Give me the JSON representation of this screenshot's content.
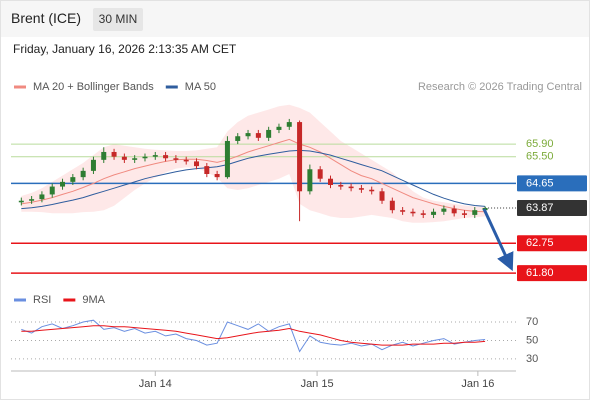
{
  "header": {
    "title": "Brent (ICE)",
    "interval": "30 MIN",
    "timestamp": "Friday, January 16, 2026 2:13:35 AM CET",
    "copyright": "Research © 2026 Trading Central"
  },
  "chart_data": [
    {
      "type": "candlestick",
      "up_color": "#2e7d32",
      "down_color": "#c62828",
      "band_color": "rgba(250,150,150,0.22)",
      "x": [
        0,
        1,
        2,
        3,
        4,
        5,
        6,
        7,
        8,
        9,
        10,
        11,
        12,
        13,
        14,
        15,
        16,
        17,
        18,
        19,
        20,
        21,
        22,
        23,
        24,
        25,
        26,
        27,
        28,
        29,
        30,
        31,
        32,
        33,
        34,
        35,
        36,
        37,
        38,
        39,
        40,
        41,
        42,
        43,
        44,
        45
      ],
      "xlim": [
        -1,
        48
      ],
      "ylim": [
        61.39,
        67.27
      ],
      "open": [
        64.05,
        64.1,
        64.15,
        64.3,
        64.55,
        64.7,
        64.85,
        65.05,
        65.4,
        65.65,
        65.5,
        65.4,
        65.45,
        65.5,
        65.55,
        65.45,
        65.4,
        65.35,
        65.2,
        64.95,
        64.85,
        66.0,
        66.15,
        66.25,
        66.1,
        66.35,
        66.45,
        66.6,
        64.4,
        65.1,
        64.8,
        64.6,
        64.55,
        64.5,
        64.45,
        64.4,
        64.1,
        63.8,
        63.75,
        63.7,
        63.65,
        63.75,
        63.85,
        63.7,
        63.65,
        63.8
      ],
      "high": [
        64.2,
        64.25,
        64.4,
        64.65,
        64.8,
        64.95,
        65.15,
        65.5,
        65.8,
        65.75,
        65.6,
        65.55,
        65.6,
        65.65,
        65.65,
        65.55,
        65.5,
        65.45,
        65.3,
        65.05,
        66.15,
        66.25,
        66.35,
        66.35,
        66.45,
        66.55,
        66.7,
        66.65,
        65.25,
        65.2,
        64.9,
        64.7,
        64.65,
        64.6,
        64.55,
        64.5,
        64.2,
        63.9,
        63.85,
        63.8,
        63.85,
        63.95,
        63.95,
        63.8,
        63.9,
        63.92
      ],
      "low": [
        63.95,
        64.0,
        64.05,
        64.2,
        64.45,
        64.6,
        64.75,
        64.95,
        65.3,
        65.4,
        65.3,
        65.3,
        65.35,
        65.4,
        65.35,
        65.3,
        65.25,
        65.1,
        64.85,
        64.75,
        64.8,
        65.9,
        66.05,
        66.0,
        66.0,
        66.25,
        66.35,
        63.45,
        64.3,
        64.7,
        64.5,
        64.45,
        64.4,
        64.35,
        64.3,
        64.0,
        63.7,
        63.65,
        63.6,
        63.55,
        63.55,
        63.65,
        63.6,
        63.55,
        63.55,
        63.75
      ],
      "close": [
        64.1,
        64.15,
        64.3,
        64.55,
        64.7,
        64.85,
        65.05,
        65.4,
        65.65,
        65.5,
        65.4,
        65.45,
        65.5,
        65.55,
        65.45,
        65.4,
        65.35,
        65.2,
        64.95,
        64.85,
        66.0,
        66.15,
        66.25,
        66.1,
        66.35,
        66.45,
        66.6,
        64.4,
        65.1,
        64.8,
        64.6,
        64.55,
        64.5,
        64.45,
        64.4,
        64.1,
        63.8,
        63.75,
        63.7,
        63.65,
        63.75,
        63.85,
        63.7,
        63.65,
        63.8,
        63.87
      ],
      "series": [
        {
          "name": "MA 20 + Bollinger Bands",
          "color": "#f08a80",
          "values": [
            64.0,
            64.05,
            64.12,
            64.2,
            64.3,
            64.4,
            64.52,
            64.65,
            64.8,
            64.92,
            65.02,
            65.12,
            65.2,
            65.28,
            65.35,
            65.4,
            65.42,
            65.42,
            65.38,
            65.32,
            65.4,
            65.52,
            65.65,
            65.75,
            65.85,
            65.95,
            66.05,
            65.9,
            65.8,
            65.65,
            65.45,
            65.25,
            65.05,
            64.9,
            64.8,
            64.65,
            64.5,
            64.35,
            64.2,
            64.1,
            64.0,
            63.92,
            63.85,
            63.8,
            63.76,
            63.75
          ],
          "upper": [
            64.25,
            64.35,
            64.5,
            64.7,
            64.9,
            65.1,
            65.3,
            65.55,
            65.8,
            65.9,
            65.85,
            65.8,
            65.75,
            65.72,
            65.7,
            65.68,
            65.68,
            65.7,
            65.75,
            65.8,
            66.3,
            66.6,
            66.8,
            66.9,
            67.0,
            67.1,
            67.15,
            67.05,
            66.9,
            66.6,
            66.3,
            66.0,
            65.8,
            65.6,
            65.4,
            65.2,
            65.0,
            64.7,
            64.4,
            64.2,
            64.1,
            64.05,
            64.0,
            63.95,
            63.92,
            63.9
          ],
          "lower": [
            63.75,
            63.75,
            63.74,
            63.7,
            63.7,
            63.7,
            63.74,
            63.75,
            63.8,
            63.94,
            64.19,
            64.44,
            64.65,
            64.84,
            65.0,
            65.12,
            65.16,
            65.14,
            65.01,
            64.84,
            64.5,
            64.44,
            64.5,
            64.6,
            64.7,
            64.8,
            64.95,
            64.0,
            63.8,
            63.7,
            63.6,
            63.55,
            63.55,
            63.6,
            63.65,
            63.6,
            63.55,
            63.45,
            63.4,
            63.4,
            63.42,
            63.45,
            63.5,
            63.55,
            63.58,
            63.6
          ]
        },
        {
          "name": "MA 50",
          "color": "#2f5d9e",
          "values": [
            63.85,
            63.88,
            63.92,
            63.98,
            64.05,
            64.12,
            64.2,
            64.3,
            64.4,
            64.5,
            64.6,
            64.7,
            64.8,
            64.88,
            64.95,
            65.02,
            65.08,
            65.12,
            65.15,
            65.18,
            65.25,
            65.35,
            65.45,
            65.52,
            65.58,
            65.63,
            65.68,
            65.7,
            65.68,
            65.62,
            65.55,
            65.45,
            65.35,
            65.25,
            65.15,
            65.05,
            64.9,
            64.75,
            64.6,
            64.45,
            64.3,
            64.18,
            64.08,
            64.0,
            63.95,
            63.92
          ]
        }
      ],
      "levels": [
        {
          "value": 65.9,
          "label": "65.90",
          "color": "#b9dc9c",
          "text_color": "#7cab3a",
          "style": "plain"
        },
        {
          "value": 65.5,
          "label": "65.50",
          "color": "#b9dc9c",
          "text_color": "#7cab3a",
          "style": "plain"
        },
        {
          "value": 64.65,
          "label": "64.65",
          "color": "#2a6ebb",
          "text_color": "#ffffff",
          "style": "box"
        },
        {
          "value": 63.87,
          "label": "63.87",
          "color": "#333333",
          "text_color": "#ffffff",
          "style": "dotted-box"
        },
        {
          "value": 62.75,
          "label": "62.75",
          "color": "#e8141a",
          "text_color": "#ffffff",
          "style": "box"
        },
        {
          "value": 61.8,
          "label": "61.80",
          "color": "#e8141a",
          "text_color": "#ffffff",
          "style": "box"
        }
      ]
    },
    {
      "type": "line",
      "x": [
        0,
        1,
        2,
        3,
        4,
        5,
        6,
        7,
        8,
        9,
        10,
        11,
        12,
        13,
        14,
        15,
        16,
        17,
        18,
        19,
        20,
        21,
        22,
        23,
        24,
        25,
        26,
        27,
        28,
        29,
        30,
        31,
        32,
        33,
        34,
        35,
        36,
        37,
        38,
        39,
        40,
        41,
        42,
        43,
        44,
        45
      ],
      "xlim": [
        -1,
        48
      ],
      "ylim": [
        19,
        82
      ],
      "yticks": [
        30,
        50,
        70
      ],
      "xticks": [
        {
          "value": 13,
          "label": "Jan 14"
        },
        {
          "value": 28.7,
          "label": "Jan 15"
        },
        {
          "value": 44.3,
          "label": "Jan 16"
        }
      ],
      "series": [
        {
          "name": "RSI",
          "color": "#6a8fe0",
          "values": [
            62,
            58,
            65,
            68,
            63,
            66,
            70,
            72,
            62,
            64,
            60,
            63,
            58,
            60,
            55,
            57,
            52,
            50,
            45,
            47,
            70,
            66,
            62,
            68,
            60,
            65,
            68,
            38,
            55,
            48,
            46,
            45,
            47,
            44,
            46,
            40,
            45,
            48,
            44,
            47,
            50,
            52,
            46,
            48,
            50,
            51
          ]
        },
        {
          "name": "9MA",
          "color": "#e8141a",
          "values": [
            60,
            60,
            61,
            62,
            63,
            64,
            65,
            66,
            66,
            65,
            65,
            64,
            63,
            62,
            61,
            60,
            58,
            56,
            54,
            52,
            53,
            55,
            57,
            59,
            60,
            61,
            63,
            60,
            58,
            56,
            53,
            50,
            48,
            47,
            46,
            45,
            45,
            45,
            46,
            46,
            46,
            47,
            47,
            48,
            48,
            49
          ]
        }
      ]
    }
  ]
}
